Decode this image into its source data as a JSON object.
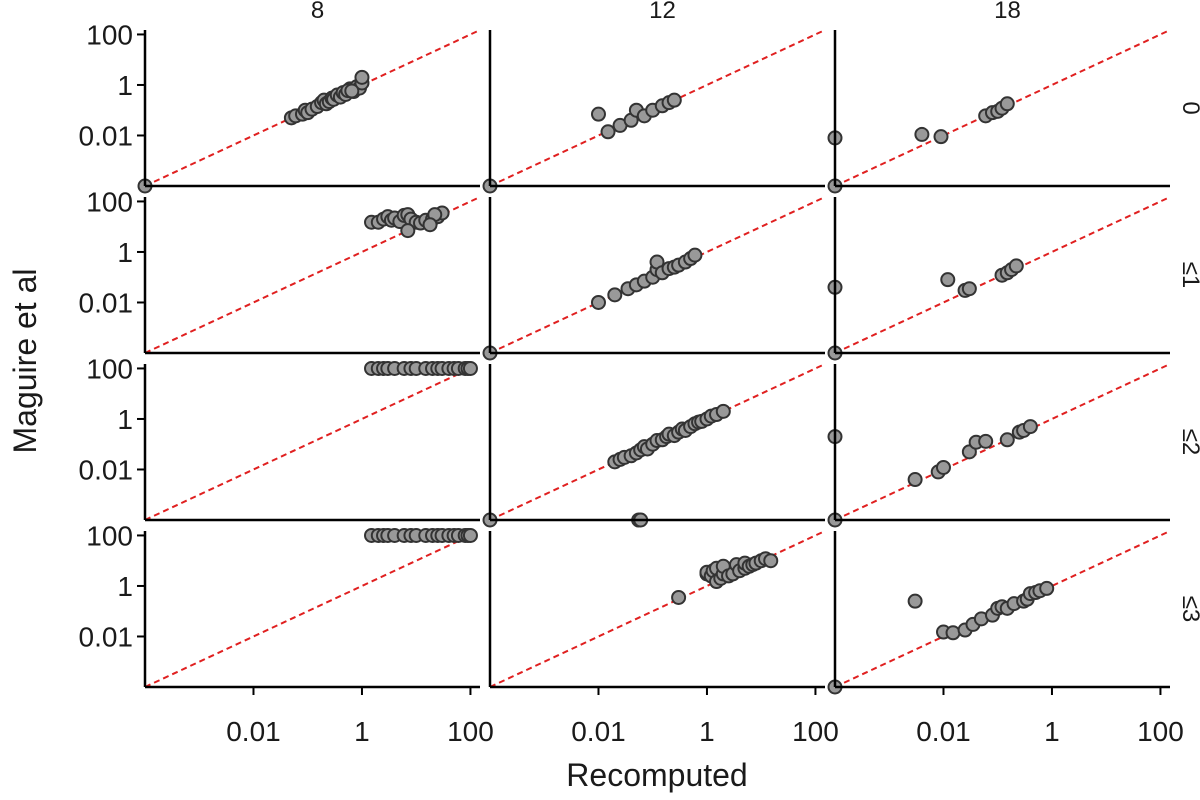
{
  "chart_data": {
    "type": "scatter",
    "title": "",
    "xlabel": "Recomputed",
    "ylabel": "Maguire et al",
    "scale": "log10",
    "xlim": [
      0.0001,
      150
    ],
    "ylim": [
      0.0001,
      150
    ],
    "x_ticks": [
      {
        "value": 0.01,
        "label": "0.01"
      },
      {
        "value": 1,
        "label": "1"
      },
      {
        "value": 100,
        "label": "100"
      }
    ],
    "y_ticks": [
      {
        "value": 0.01,
        "label": "0.01"
      },
      {
        "value": 1,
        "label": "1"
      },
      {
        "value": 100,
        "label": "100"
      }
    ],
    "reference_line": {
      "slope": 1,
      "style": "dashed",
      "color": "#e02020"
    },
    "colors": {
      "point_fill": "#999999",
      "point_stroke": "#333333",
      "axis": "#000000"
    },
    "column_facets": [
      "8",
      "12",
      "18"
    ],
    "row_facets": [
      "0",
      "≤1",
      "≤2",
      "≤3"
    ],
    "panels": [
      {
        "row": 0,
        "col": 0,
        "points": [
          [
            0.0001,
            0.0001
          ],
          [
            0.05,
            0.05
          ],
          [
            0.06,
            0.06
          ],
          [
            0.08,
            0.07
          ],
          [
            0.09,
            0.1
          ],
          [
            0.1,
            0.08
          ],
          [
            0.12,
            0.11
          ],
          [
            0.15,
            0.14
          ],
          [
            0.18,
            0.2
          ],
          [
            0.2,
            0.25
          ],
          [
            0.22,
            0.18
          ],
          [
            0.25,
            0.22
          ],
          [
            0.28,
            0.3
          ],
          [
            0.3,
            0.27
          ],
          [
            0.35,
            0.4
          ],
          [
            0.4,
            0.33
          ],
          [
            0.45,
            0.5
          ],
          [
            0.5,
            0.42
          ],
          [
            0.6,
            0.7
          ],
          [
            0.7,
            0.55
          ],
          [
            0.8,
            0.85
          ],
          [
            0.9,
            0.75
          ],
          [
            1.0,
            1.2
          ],
          [
            1.0,
            2.0
          ],
          [
            0.55,
            0.6
          ],
          [
            0.65,
            0.58
          ]
        ]
      },
      {
        "row": 0,
        "col": 1,
        "points": [
          [
            0.0001,
            0.0001
          ],
          [
            0.01,
            0.07
          ],
          [
            0.015,
            0.014
          ],
          [
            0.025,
            0.025
          ],
          [
            0.04,
            0.04
          ],
          [
            0.05,
            0.1
          ],
          [
            0.07,
            0.06
          ],
          [
            0.1,
            0.1
          ],
          [
            0.15,
            0.15
          ],
          [
            0.2,
            0.2
          ],
          [
            0.25,
            0.25
          ]
        ]
      },
      {
        "row": 0,
        "col": 2,
        "points": [
          [
            0.0001,
            0.0001
          ],
          [
            0.0001,
            0.008
          ],
          [
            0.004,
            0.011
          ],
          [
            0.009,
            0.009
          ],
          [
            0.06,
            0.06
          ],
          [
            0.08,
            0.08
          ],
          [
            0.1,
            0.09
          ],
          [
            0.12,
            0.12
          ],
          [
            0.15,
            0.18
          ]
        ]
      },
      {
        "row": 1,
        "col": 0,
        "points": [
          [
            1.5,
            15
          ],
          [
            2,
            15
          ],
          [
            2.5,
            20
          ],
          [
            3,
            25
          ],
          [
            3.5,
            18
          ],
          [
            4,
            22
          ],
          [
            5,
            16
          ],
          [
            6,
            28
          ],
          [
            7,
            30
          ],
          [
            8,
            20
          ],
          [
            10,
            15
          ],
          [
            7,
            7
          ],
          [
            12,
            14
          ],
          [
            15,
            18
          ],
          [
            20,
            20
          ],
          [
            25,
            25
          ],
          [
            30,
            35
          ],
          [
            22,
            30
          ],
          [
            18,
            12
          ]
        ]
      },
      {
        "row": 1,
        "col": 1,
        "points": [
          [
            0.0001,
            0.0001
          ],
          [
            0.01,
            0.01
          ],
          [
            0.02,
            0.02
          ],
          [
            0.035,
            0.035
          ],
          [
            0.05,
            0.05
          ],
          [
            0.07,
            0.07
          ],
          [
            0.1,
            0.1
          ],
          [
            0.12,
            0.2
          ],
          [
            0.12,
            0.4
          ],
          [
            0.15,
            0.15
          ],
          [
            0.2,
            0.22
          ],
          [
            0.25,
            0.25
          ],
          [
            0.3,
            0.3
          ],
          [
            0.4,
            0.4
          ],
          [
            0.5,
            0.55
          ],
          [
            0.6,
            0.75
          ]
        ]
      },
      {
        "row": 1,
        "col": 2,
        "points": [
          [
            0.0001,
            0.0001
          ],
          [
            0.0001,
            0.04
          ],
          [
            0.012,
            0.08
          ],
          [
            0.025,
            0.03
          ],
          [
            0.03,
            0.035
          ],
          [
            0.12,
            0.12
          ],
          [
            0.15,
            0.15
          ],
          [
            0.18,
            0.2
          ],
          [
            0.22,
            0.28
          ]
        ]
      },
      {
        "row": 2,
        "col": 0,
        "points": [
          [
            1.5,
            100
          ],
          [
            2,
            100
          ],
          [
            2.5,
            100
          ],
          [
            3,
            100
          ],
          [
            4,
            100
          ],
          [
            6,
            100
          ],
          [
            8,
            100
          ],
          [
            10,
            100
          ],
          [
            15,
            100
          ],
          [
            20,
            100
          ],
          [
            25,
            100
          ],
          [
            30,
            100
          ],
          [
            40,
            100
          ],
          [
            50,
            100
          ],
          [
            60,
            100
          ],
          [
            80,
            100
          ],
          [
            90,
            100
          ],
          [
            100,
            100
          ]
        ]
      },
      {
        "row": 2,
        "col": 1,
        "points": [
          [
            0.0001,
            0.0001
          ],
          [
            0.02,
            0.02
          ],
          [
            0.025,
            0.025
          ],
          [
            0.03,
            0.03
          ],
          [
            0.04,
            0.035
          ],
          [
            0.05,
            0.045
          ],
          [
            0.06,
            0.06
          ],
          [
            0.07,
            0.08
          ],
          [
            0.08,
            0.065
          ],
          [
            0.1,
            0.1
          ],
          [
            0.12,
            0.14
          ],
          [
            0.15,
            0.15
          ],
          [
            0.18,
            0.2
          ],
          [
            0.2,
            0.25
          ],
          [
            0.25,
            0.22
          ],
          [
            0.3,
            0.3
          ],
          [
            0.35,
            0.4
          ],
          [
            0.4,
            0.35
          ],
          [
            0.5,
            0.5
          ],
          [
            0.6,
            0.65
          ],
          [
            0.7,
            0.75
          ],
          [
            0.8,
            0.8
          ],
          [
            1.0,
            1.0
          ],
          [
            1.2,
            1.3
          ],
          [
            1.5,
            1.5
          ],
          [
            2.0,
            2.0
          ],
          [
            0.055,
            0.0001
          ],
          [
            0.06,
            0.0001
          ]
        ]
      },
      {
        "row": 2,
        "col": 2,
        "points": [
          [
            0.0001,
            0.0001
          ],
          [
            0.0001,
            0.2
          ],
          [
            0.003,
            0.004
          ],
          [
            0.008,
            0.008
          ],
          [
            0.01,
            0.012
          ],
          [
            0.03,
            0.05
          ],
          [
            0.04,
            0.12
          ],
          [
            0.06,
            0.13
          ],
          [
            0.15,
            0.15
          ],
          [
            0.25,
            0.3
          ],
          [
            0.3,
            0.35
          ],
          [
            0.4,
            0.5
          ]
        ]
      },
      {
        "row": 3,
        "col": 0,
        "points": [
          [
            1.5,
            100
          ],
          [
            2,
            100
          ],
          [
            2.5,
            100
          ],
          [
            3,
            100
          ],
          [
            4,
            100
          ],
          [
            6,
            100
          ],
          [
            8,
            100
          ],
          [
            10,
            100
          ],
          [
            15,
            100
          ],
          [
            20,
            100
          ],
          [
            25,
            100
          ],
          [
            30,
            100
          ],
          [
            40,
            100
          ],
          [
            50,
            100
          ],
          [
            60,
            100
          ],
          [
            80,
            100
          ],
          [
            90,
            100
          ],
          [
            100,
            100
          ]
        ]
      },
      {
        "row": 3,
        "col": 1,
        "points": [
          [
            0.3,
            0.35
          ],
          [
            1,
            3
          ],
          [
            1,
            3.5
          ],
          [
            1.2,
            2.5
          ],
          [
            1.3,
            4
          ],
          [
            1.5,
            5
          ],
          [
            1.5,
            1.5
          ],
          [
            1.8,
            2
          ],
          [
            2,
            3
          ],
          [
            2,
            6
          ],
          [
            2.5,
            2.5
          ],
          [
            3,
            3
          ],
          [
            3.5,
            7
          ],
          [
            4,
            4
          ],
          [
            5,
            5
          ],
          [
            5,
            8
          ],
          [
            6,
            6
          ],
          [
            7,
            7
          ],
          [
            8,
            8
          ],
          [
            10,
            10
          ],
          [
            12,
            12
          ],
          [
            15,
            10
          ]
        ]
      },
      {
        "row": 3,
        "col": 2,
        "points": [
          [
            0.0001,
            0.0001
          ],
          [
            0.003,
            0.25
          ],
          [
            0.01,
            0.015
          ],
          [
            0.015,
            0.014
          ],
          [
            0.025,
            0.018
          ],
          [
            0.035,
            0.03
          ],
          [
            0.05,
            0.05
          ],
          [
            0.08,
            0.07
          ],
          [
            0.1,
            0.13
          ],
          [
            0.12,
            0.15
          ],
          [
            0.15,
            0.13
          ],
          [
            0.2,
            0.2
          ],
          [
            0.3,
            0.25
          ],
          [
            0.35,
            0.3
          ],
          [
            0.4,
            0.5
          ],
          [
            0.5,
            0.55
          ],
          [
            0.6,
            0.65
          ],
          [
            0.8,
            0.8
          ]
        ]
      }
    ]
  }
}
